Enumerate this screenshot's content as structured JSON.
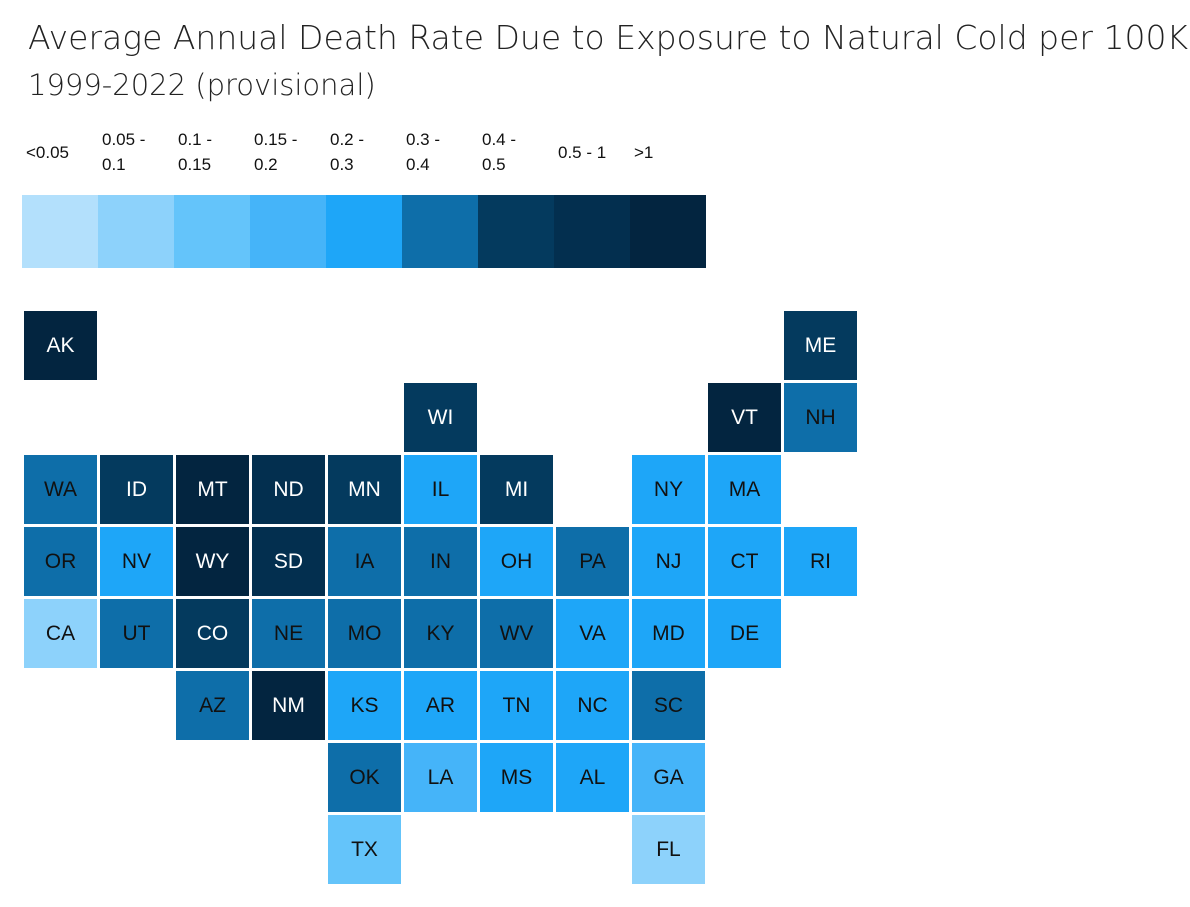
{
  "chart_data": {
    "type": "tile-grid-map",
    "title": "Average Annual Death Rate Due to Exposure to Natural Cold per 100K",
    "subtitle": "1999-2022 (provisional)",
    "legend": {
      "placement": "top-left",
      "bins": [
        {
          "label": "<0.05",
          "label_lines": [
            "<0.05"
          ],
          "color": "#b3e0fc"
        },
        {
          "label": "0.05 - 0.1",
          "label_lines": [
            "0.05 -",
            "0.1"
          ],
          "color": "#8dd2fb"
        },
        {
          "label": "0.1 - 0.15",
          "label_lines": [
            "0.1 -",
            "0.15"
          ],
          "color": "#64c4fa"
        },
        {
          "label": "0.15 - 0.2",
          "label_lines": [
            "0.15 -",
            "0.2"
          ],
          "color": "#45b4f9"
        },
        {
          "label": "0.2 - 0.3",
          "label_lines": [
            "0.2 -",
            "0.3"
          ],
          "color": "#1ea6f8"
        },
        {
          "label": "0.3 - 0.4",
          "label_lines": [
            "0.3 -",
            "0.4"
          ],
          "color": "#0e6ea9"
        },
        {
          "label": "0.4 - 0.5",
          "label_lines": [
            "0.4 -",
            "0.5"
          ],
          "color": "#043a5e"
        },
        {
          "label": "0.5 - 1",
          "label_lines": [
            "0.5 - 1"
          ],
          "color": "#032f4f"
        },
        {
          "label": ">1",
          "label_lines": [
            ">1"
          ],
          "color": "#032540"
        }
      ]
    },
    "states": [
      {
        "abbr": "AK",
        "row": 0,
        "col": 0,
        "bin": 8
      },
      {
        "abbr": "ME",
        "row": 0,
        "col": 10,
        "bin": 6
      },
      {
        "abbr": "WI",
        "row": 1,
        "col": 5,
        "bin": 6
      },
      {
        "abbr": "VT",
        "row": 1,
        "col": 9,
        "bin": 8
      },
      {
        "abbr": "NH",
        "row": 1,
        "col": 10,
        "bin": 5
      },
      {
        "abbr": "WA",
        "row": 2,
        "col": 0,
        "bin": 5
      },
      {
        "abbr": "ID",
        "row": 2,
        "col": 1,
        "bin": 6
      },
      {
        "abbr": "MT",
        "row": 2,
        "col": 2,
        "bin": 8
      },
      {
        "abbr": "ND",
        "row": 2,
        "col": 3,
        "bin": 7
      },
      {
        "abbr": "MN",
        "row": 2,
        "col": 4,
        "bin": 6
      },
      {
        "abbr": "IL",
        "row": 2,
        "col": 5,
        "bin": 4
      },
      {
        "abbr": "MI",
        "row": 2,
        "col": 6,
        "bin": 6
      },
      {
        "abbr": "NY",
        "row": 2,
        "col": 8,
        "bin": 4
      },
      {
        "abbr": "MA",
        "row": 2,
        "col": 9,
        "bin": 4
      },
      {
        "abbr": "OR",
        "row": 3,
        "col": 0,
        "bin": 5
      },
      {
        "abbr": "NV",
        "row": 3,
        "col": 1,
        "bin": 4
      },
      {
        "abbr": "WY",
        "row": 3,
        "col": 2,
        "bin": 8
      },
      {
        "abbr": "SD",
        "row": 3,
        "col": 3,
        "bin": 7
      },
      {
        "abbr": "IA",
        "row": 3,
        "col": 4,
        "bin": 5
      },
      {
        "abbr": "IN",
        "row": 3,
        "col": 5,
        "bin": 5
      },
      {
        "abbr": "OH",
        "row": 3,
        "col": 6,
        "bin": 4
      },
      {
        "abbr": "PA",
        "row": 3,
        "col": 7,
        "bin": 5
      },
      {
        "abbr": "NJ",
        "row": 3,
        "col": 8,
        "bin": 4
      },
      {
        "abbr": "CT",
        "row": 3,
        "col": 9,
        "bin": 4
      },
      {
        "abbr": "RI",
        "row": 3,
        "col": 10,
        "bin": 4
      },
      {
        "abbr": "CA",
        "row": 4,
        "col": 0,
        "bin": 1
      },
      {
        "abbr": "UT",
        "row": 4,
        "col": 1,
        "bin": 5
      },
      {
        "abbr": "CO",
        "row": 4,
        "col": 2,
        "bin": 6
      },
      {
        "abbr": "NE",
        "row": 4,
        "col": 3,
        "bin": 5
      },
      {
        "abbr": "MO",
        "row": 4,
        "col": 4,
        "bin": 5
      },
      {
        "abbr": "KY",
        "row": 4,
        "col": 5,
        "bin": 5
      },
      {
        "abbr": "WV",
        "row": 4,
        "col": 6,
        "bin": 5
      },
      {
        "abbr": "VA",
        "row": 4,
        "col": 7,
        "bin": 4
      },
      {
        "abbr": "MD",
        "row": 4,
        "col": 8,
        "bin": 4
      },
      {
        "abbr": "DE",
        "row": 4,
        "col": 9,
        "bin": 4
      },
      {
        "abbr": "AZ",
        "row": 5,
        "col": 2,
        "bin": 5
      },
      {
        "abbr": "NM",
        "row": 5,
        "col": 3,
        "bin": 8
      },
      {
        "abbr": "KS",
        "row": 5,
        "col": 4,
        "bin": 4
      },
      {
        "abbr": "AR",
        "row": 5,
        "col": 5,
        "bin": 4
      },
      {
        "abbr": "TN",
        "row": 5,
        "col": 6,
        "bin": 4
      },
      {
        "abbr": "NC",
        "row": 5,
        "col": 7,
        "bin": 4
      },
      {
        "abbr": "SC",
        "row": 5,
        "col": 8,
        "bin": 5
      },
      {
        "abbr": "OK",
        "row": 6,
        "col": 4,
        "bin": 5
      },
      {
        "abbr": "LA",
        "row": 6,
        "col": 5,
        "bin": 3
      },
      {
        "abbr": "MS",
        "row": 6,
        "col": 6,
        "bin": 4
      },
      {
        "abbr": "AL",
        "row": 6,
        "col": 7,
        "bin": 4
      },
      {
        "abbr": "GA",
        "row": 6,
        "col": 8,
        "bin": 3
      },
      {
        "abbr": "TX",
        "row": 7,
        "col": 4,
        "bin": 2
      },
      {
        "abbr": "FL",
        "row": 7,
        "col": 8,
        "bin": 1
      }
    ]
  }
}
